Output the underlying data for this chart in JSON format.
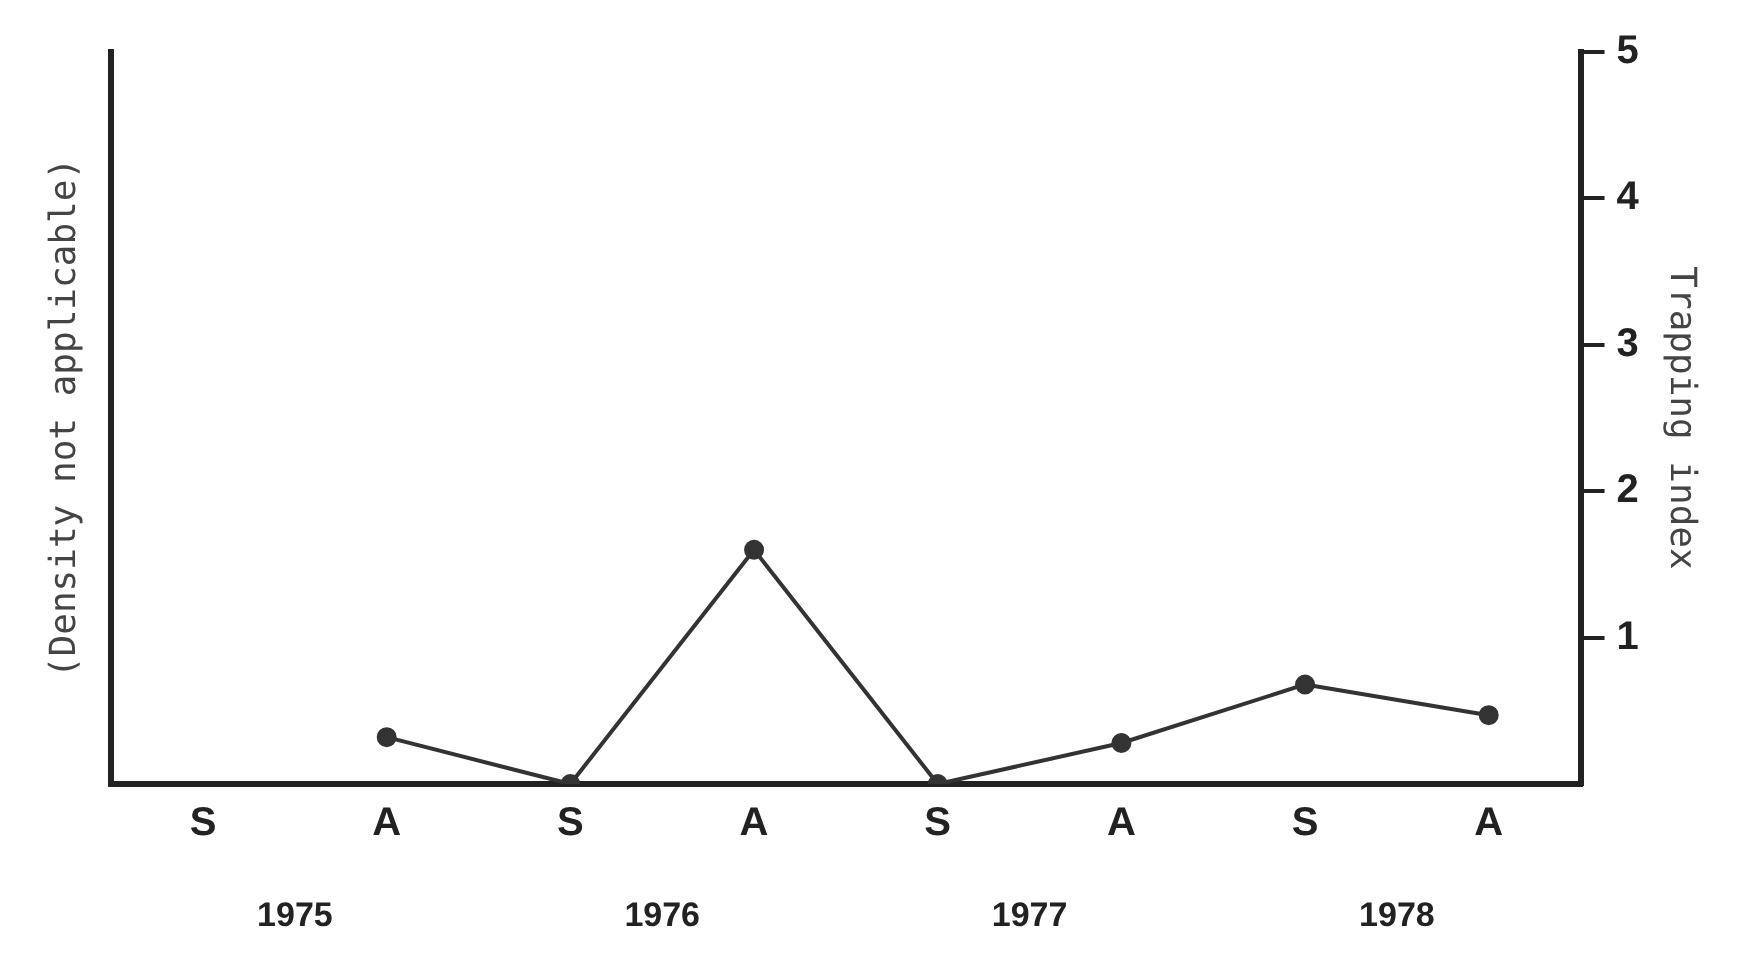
{
  "chart_data": {
    "type": "line",
    "ylabel": "(Density not applicable)",
    "y2label": "Trapping index",
    "categories": [
      "S",
      "A",
      "S",
      "A",
      "S",
      "A",
      "S",
      "A"
    ],
    "annotations": [
      "1975",
      "1976",
      "1977",
      "1978"
    ],
    "series": [
      {
        "color": "#333333",
        "axis": "y2",
        "values": [
          null,
          0.32,
          0,
          1.6,
          0,
          0.28,
          0.68,
          0.47
        ]
      }
    ],
    "y2lim": [
      0,
      5
    ],
    "y2ticks": [
      1,
      2,
      3,
      4,
      5
    ],
    "grid": false,
    "legend": false,
    "marker": "circle",
    "line_style": "solid"
  }
}
